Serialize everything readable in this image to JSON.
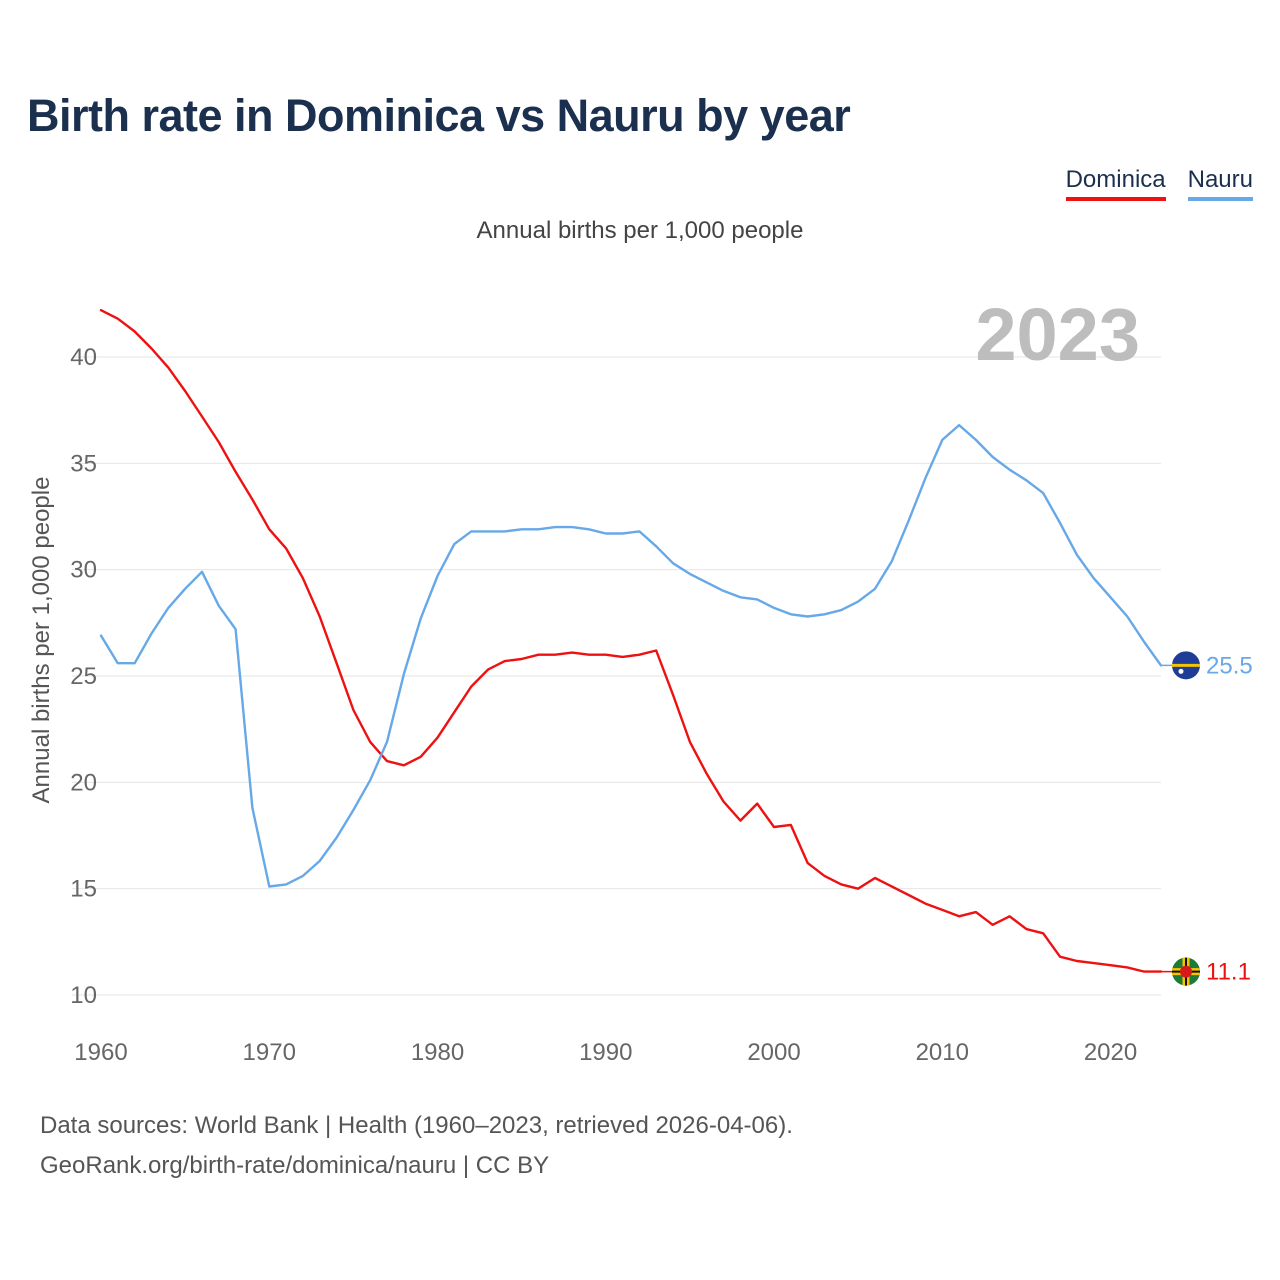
{
  "title": "Birth rate in Dominica vs Nauru by year",
  "legend": {
    "dominica": "Dominica",
    "nauru": "Nauru"
  },
  "subtitle": "Annual births per 1,000 people",
  "year_display": "2023",
  "source_line1": "Data sources: World Bank | Health (1960–2023, retrieved 2026-04-06).",
  "source_line2": "GeoRank.org/birth-rate/dominica/nauru | CC BY",
  "colors": {
    "dominica": "#ee1111",
    "nauru": "#66a8e8",
    "grid": "#e6e6e6",
    "tick": "#666666"
  },
  "chart_data": {
    "type": "line",
    "title": "Birth rate in Dominica vs Nauru by year",
    "xlabel": "",
    "ylabel": "Annual births per 1,000 people",
    "xlim": [
      1960,
      2023
    ],
    "ylim": [
      10,
      42.5
    ],
    "xticks": [
      1960,
      1970,
      1980,
      1990,
      2000,
      2010,
      2020
    ],
    "yticks": [
      10,
      15,
      20,
      25,
      30,
      35,
      40
    ],
    "grid": true,
    "legend_position": "top-right",
    "series": [
      {
        "name": "Dominica",
        "end_label": "11.1",
        "x": [
          1960,
          1961,
          1962,
          1963,
          1964,
          1965,
          1966,
          1967,
          1968,
          1969,
          1970,
          1971,
          1972,
          1973,
          1974,
          1975,
          1976,
          1977,
          1978,
          1979,
          1980,
          1981,
          1982,
          1983,
          1984,
          1985,
          1986,
          1987,
          1988,
          1989,
          1990,
          1991,
          1992,
          1993,
          1994,
          1995,
          1996,
          1997,
          1998,
          1999,
          2000,
          2001,
          2002,
          2003,
          2004,
          2005,
          2006,
          2007,
          2008,
          2009,
          2010,
          2011,
          2012,
          2013,
          2014,
          2015,
          2016,
          2017,
          2018,
          2019,
          2020,
          2021,
          2022,
          2023
        ],
        "values": [
          42.2,
          41.8,
          41.2,
          40.4,
          39.5,
          38.4,
          37.2,
          36.0,
          34.6,
          33.3,
          31.9,
          31.0,
          29.6,
          27.8,
          25.6,
          23.4,
          21.9,
          21.0,
          20.8,
          21.2,
          22.1,
          23.3,
          24.5,
          25.3,
          25.7,
          25.8,
          26.0,
          26.0,
          26.1,
          26.0,
          26.0,
          25.9,
          26.0,
          26.2,
          24.1,
          21.9,
          20.4,
          19.1,
          18.2,
          19.0,
          17.9,
          18.0,
          16.2,
          15.6,
          15.2,
          15.0,
          15.5,
          15.1,
          14.7,
          14.3,
          14.0,
          13.7,
          13.9,
          13.3,
          13.7,
          13.1,
          12.9,
          11.8,
          11.6,
          11.5,
          11.4,
          11.3,
          11.1,
          11.1
        ]
      },
      {
        "name": "Nauru",
        "end_label": "25.5",
        "x": [
          1960,
          1961,
          1962,
          1963,
          1964,
          1965,
          1966,
          1967,
          1968,
          1969,
          1970,
          1971,
          1972,
          1973,
          1974,
          1975,
          1976,
          1977,
          1978,
          1979,
          1980,
          1981,
          1982,
          1983,
          1984,
          1985,
          1986,
          1987,
          1988,
          1989,
          1990,
          1991,
          1992,
          1993,
          1994,
          1995,
          1996,
          1997,
          1998,
          1999,
          2000,
          2001,
          2002,
          2003,
          2004,
          2005,
          2006,
          2007,
          2008,
          2009,
          2010,
          2011,
          2012,
          2013,
          2014,
          2015,
          2016,
          2017,
          2018,
          2019,
          2020,
          2021,
          2022,
          2023
        ],
        "values": [
          26.9,
          25.6,
          25.6,
          27.0,
          28.2,
          29.1,
          29.9,
          28.3,
          27.2,
          18.8,
          15.1,
          15.2,
          15.6,
          16.3,
          17.4,
          18.7,
          20.1,
          21.9,
          25.1,
          27.7,
          29.7,
          31.2,
          31.8,
          31.8,
          31.8,
          31.9,
          31.9,
          32.0,
          32.0,
          31.9,
          31.7,
          31.7,
          31.8,
          31.1,
          30.3,
          29.8,
          29.4,
          29.0,
          28.7,
          28.6,
          28.2,
          27.9,
          27.8,
          27.9,
          28.1,
          28.5,
          29.1,
          30.4,
          32.3,
          34.3,
          36.1,
          36.8,
          36.1,
          35.3,
          34.7,
          34.2,
          33.6,
          32.2,
          30.7,
          29.6,
          28.7,
          27.8,
          26.6,
          25.5
        ]
      }
    ]
  }
}
